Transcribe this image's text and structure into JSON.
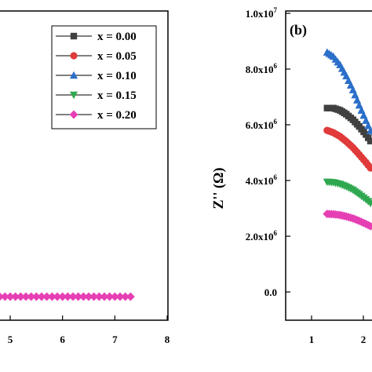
{
  "chart_data": [
    {
      "type": "scatter",
      "panel": "a",
      "xlim": [
        4.8,
        8
      ],
      "x_ticks": [
        "5",
        "6",
        "7",
        "8"
      ],
      "legend_position": "top-right",
      "series": [
        {
          "name": "x = 0.00",
          "color": "#404040",
          "marker": "square"
        },
        {
          "name": "x = 0.05",
          "color": "#e03a3a",
          "marker": "circle"
        },
        {
          "name": "x = 0.10",
          "color": "#2a6fc9",
          "marker": "triangle-up"
        },
        {
          "name": "x = 0.15",
          "color": "#2fa84f",
          "marker": "triangle-down"
        },
        {
          "name": "x = 0.20",
          "color": "#e63fb4",
          "marker": "diamond",
          "points": [
            [
              4.8,
              0
            ],
            [
              4.9,
              0
            ],
            [
              5.0,
              0
            ],
            [
              5.1,
              0
            ],
            [
              5.2,
              0
            ],
            [
              5.3,
              0
            ],
            [
              5.4,
              0
            ],
            [
              5.5,
              0
            ],
            [
              5.6,
              0
            ],
            [
              5.7,
              0
            ],
            [
              5.8,
              0
            ],
            [
              5.9,
              0
            ],
            [
              6.0,
              0
            ],
            [
              6.1,
              0
            ],
            [
              6.2,
              0
            ],
            [
              6.3,
              0
            ],
            [
              6.4,
              0
            ],
            [
              6.5,
              0
            ],
            [
              6.6,
              0
            ],
            [
              6.7,
              0
            ],
            [
              6.8,
              0
            ],
            [
              6.9,
              0
            ],
            [
              7.0,
              0
            ],
            [
              7.1,
              0
            ],
            [
              7.2,
              0
            ],
            [
              7.3,
              0
            ]
          ]
        }
      ]
    },
    {
      "type": "scatter",
      "panel": "b",
      "panel_label": "(b)",
      "ylabel": "Z'' (Ω)",
      "ylim": [
        -1000000,
        10000000
      ],
      "y_ticks": [
        {
          "value": 0,
          "label": "0.0"
        },
        {
          "value": 2000000,
          "label": "2.0x10",
          "exp": "6"
        },
        {
          "value": 4000000,
          "label": "4.0x10",
          "exp": "6"
        },
        {
          "value": 6000000,
          "label": "6.0x10",
          "exp": "6"
        },
        {
          "value": 8000000,
          "label": "8.0x10",
          "exp": "6"
        },
        {
          "value": 10000000,
          "label": "1.0x10",
          "exp": "7"
        }
      ],
      "xlim": [
        0.5,
        2.2
      ],
      "x_ticks": [
        "1",
        "2"
      ],
      "series": [
        {
          "name": "x = 0.00",
          "color": "#404040",
          "marker": "square",
          "points": [
            [
              1.3,
              6600000
            ],
            [
              1.42,
              6600000
            ],
            [
              1.55,
              6520000
            ],
            [
              1.67,
              6380000
            ],
            [
              1.8,
              6180000
            ],
            [
              1.92,
              5940000
            ],
            [
              2.05,
              5650000
            ],
            [
              2.18,
              5300000
            ]
          ]
        },
        {
          "name": "x = 0.05",
          "color": "#e03a3a",
          "marker": "circle",
          "points": [
            [
              1.3,
              5800000
            ],
            [
              1.42,
              5720000
            ],
            [
              1.55,
              5580000
            ],
            [
              1.67,
              5400000
            ],
            [
              1.8,
              5180000
            ],
            [
              1.92,
              4930000
            ],
            [
              2.05,
              4650000
            ],
            [
              2.18,
              4350000
            ]
          ]
        },
        {
          "name": "x = 0.10",
          "color": "#2a6fc9",
          "marker": "triangle-up",
          "points": [
            [
              1.3,
              8600000
            ],
            [
              1.42,
              8450000
            ],
            [
              1.55,
              8150000
            ],
            [
              1.67,
              7750000
            ],
            [
              1.8,
              7250000
            ],
            [
              1.92,
              6700000
            ],
            [
              2.05,
              6150000
            ],
            [
              2.18,
              5600000
            ]
          ]
        },
        {
          "name": "x = 0.15",
          "color": "#2fa84f",
          "marker": "triangle-down",
          "points": [
            [
              1.3,
              3950000
            ],
            [
              1.42,
              3930000
            ],
            [
              1.55,
              3870000
            ],
            [
              1.67,
              3780000
            ],
            [
              1.8,
              3660000
            ],
            [
              1.92,
              3500000
            ],
            [
              2.05,
              3320000
            ],
            [
              2.18,
              3120000
            ]
          ]
        },
        {
          "name": "x = 0.20",
          "color": "#e63fb4",
          "marker": "diamond",
          "points": [
            [
              1.3,
              2800000
            ],
            [
              1.42,
              2790000
            ],
            [
              1.55,
              2760000
            ],
            [
              1.67,
              2710000
            ],
            [
              1.8,
              2640000
            ],
            [
              1.92,
              2550000
            ],
            [
              2.05,
              2440000
            ],
            [
              2.18,
              2320000
            ]
          ]
        }
      ]
    }
  ]
}
